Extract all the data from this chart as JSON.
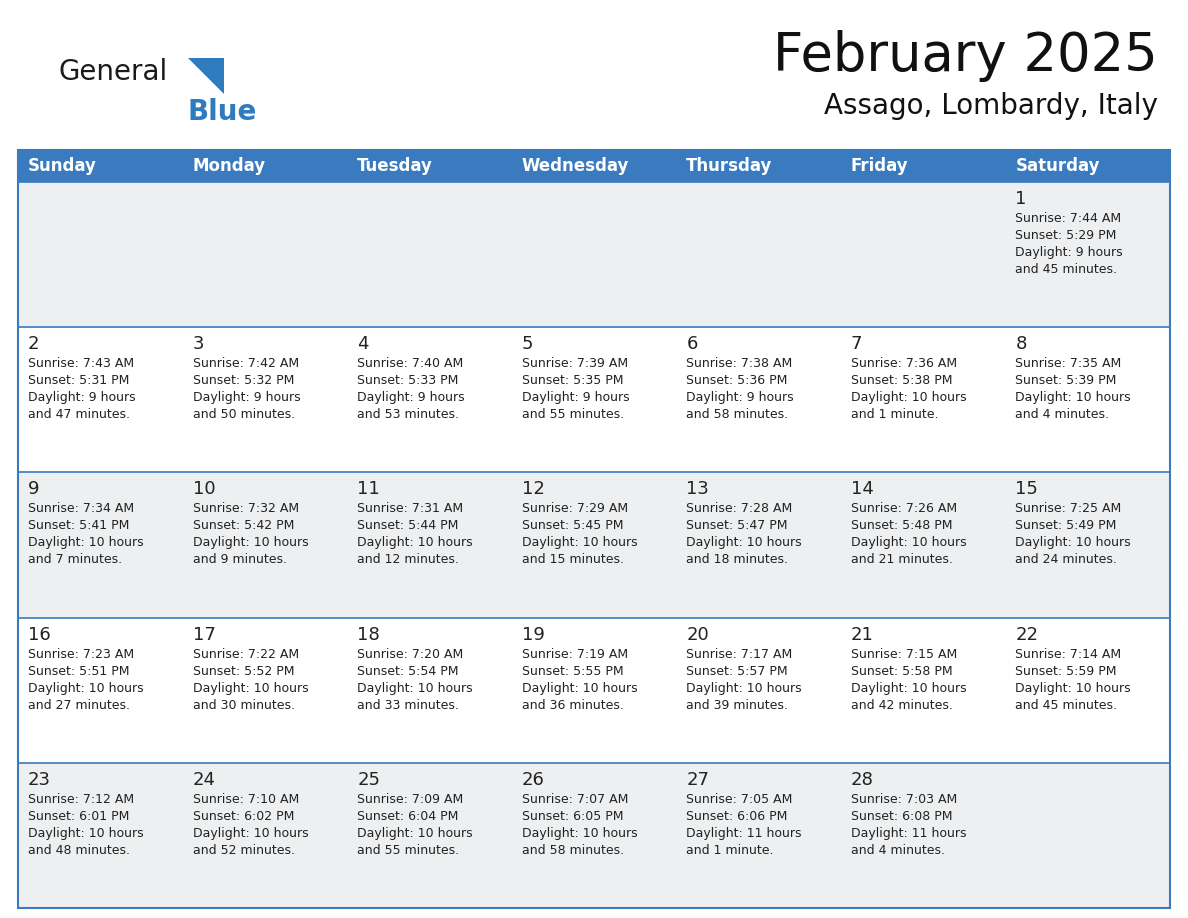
{
  "title": "February 2025",
  "subtitle": "Assago, Lombardy, Italy",
  "header_color": "#3a7abf",
  "header_text_color": "#ffffff",
  "cell_bg_light": "#f0f4f8",
  "cell_bg_white": "#ffffff",
  "row_bg_gray": "#eeeff0",
  "border_color": "#3a7abf",
  "text_color": "#222222",
  "day_number_color": "#222222",
  "days_of_week": [
    "Sunday",
    "Monday",
    "Tuesday",
    "Wednesday",
    "Thursday",
    "Friday",
    "Saturday"
  ],
  "weeks": [
    [
      {
        "day": null,
        "info": null
      },
      {
        "day": null,
        "info": null
      },
      {
        "day": null,
        "info": null
      },
      {
        "day": null,
        "info": null
      },
      {
        "day": null,
        "info": null
      },
      {
        "day": null,
        "info": null
      },
      {
        "day": 1,
        "info": "Sunrise: 7:44 AM\nSunset: 5:29 PM\nDaylight: 9 hours\nand 45 minutes."
      }
    ],
    [
      {
        "day": 2,
        "info": "Sunrise: 7:43 AM\nSunset: 5:31 PM\nDaylight: 9 hours\nand 47 minutes."
      },
      {
        "day": 3,
        "info": "Sunrise: 7:42 AM\nSunset: 5:32 PM\nDaylight: 9 hours\nand 50 minutes."
      },
      {
        "day": 4,
        "info": "Sunrise: 7:40 AM\nSunset: 5:33 PM\nDaylight: 9 hours\nand 53 minutes."
      },
      {
        "day": 5,
        "info": "Sunrise: 7:39 AM\nSunset: 5:35 PM\nDaylight: 9 hours\nand 55 minutes."
      },
      {
        "day": 6,
        "info": "Sunrise: 7:38 AM\nSunset: 5:36 PM\nDaylight: 9 hours\nand 58 minutes."
      },
      {
        "day": 7,
        "info": "Sunrise: 7:36 AM\nSunset: 5:38 PM\nDaylight: 10 hours\nand 1 minute."
      },
      {
        "day": 8,
        "info": "Sunrise: 7:35 AM\nSunset: 5:39 PM\nDaylight: 10 hours\nand 4 minutes."
      }
    ],
    [
      {
        "day": 9,
        "info": "Sunrise: 7:34 AM\nSunset: 5:41 PM\nDaylight: 10 hours\nand 7 minutes."
      },
      {
        "day": 10,
        "info": "Sunrise: 7:32 AM\nSunset: 5:42 PM\nDaylight: 10 hours\nand 9 minutes."
      },
      {
        "day": 11,
        "info": "Sunrise: 7:31 AM\nSunset: 5:44 PM\nDaylight: 10 hours\nand 12 minutes."
      },
      {
        "day": 12,
        "info": "Sunrise: 7:29 AM\nSunset: 5:45 PM\nDaylight: 10 hours\nand 15 minutes."
      },
      {
        "day": 13,
        "info": "Sunrise: 7:28 AM\nSunset: 5:47 PM\nDaylight: 10 hours\nand 18 minutes."
      },
      {
        "day": 14,
        "info": "Sunrise: 7:26 AM\nSunset: 5:48 PM\nDaylight: 10 hours\nand 21 minutes."
      },
      {
        "day": 15,
        "info": "Sunrise: 7:25 AM\nSunset: 5:49 PM\nDaylight: 10 hours\nand 24 minutes."
      }
    ],
    [
      {
        "day": 16,
        "info": "Sunrise: 7:23 AM\nSunset: 5:51 PM\nDaylight: 10 hours\nand 27 minutes."
      },
      {
        "day": 17,
        "info": "Sunrise: 7:22 AM\nSunset: 5:52 PM\nDaylight: 10 hours\nand 30 minutes."
      },
      {
        "day": 18,
        "info": "Sunrise: 7:20 AM\nSunset: 5:54 PM\nDaylight: 10 hours\nand 33 minutes."
      },
      {
        "day": 19,
        "info": "Sunrise: 7:19 AM\nSunset: 5:55 PM\nDaylight: 10 hours\nand 36 minutes."
      },
      {
        "day": 20,
        "info": "Sunrise: 7:17 AM\nSunset: 5:57 PM\nDaylight: 10 hours\nand 39 minutes."
      },
      {
        "day": 21,
        "info": "Sunrise: 7:15 AM\nSunset: 5:58 PM\nDaylight: 10 hours\nand 42 minutes."
      },
      {
        "day": 22,
        "info": "Sunrise: 7:14 AM\nSunset: 5:59 PM\nDaylight: 10 hours\nand 45 minutes."
      }
    ],
    [
      {
        "day": 23,
        "info": "Sunrise: 7:12 AM\nSunset: 6:01 PM\nDaylight: 10 hours\nand 48 minutes."
      },
      {
        "day": 24,
        "info": "Sunrise: 7:10 AM\nSunset: 6:02 PM\nDaylight: 10 hours\nand 52 minutes."
      },
      {
        "day": 25,
        "info": "Sunrise: 7:09 AM\nSunset: 6:04 PM\nDaylight: 10 hours\nand 55 minutes."
      },
      {
        "day": 26,
        "info": "Sunrise: 7:07 AM\nSunset: 6:05 PM\nDaylight: 10 hours\nand 58 minutes."
      },
      {
        "day": 27,
        "info": "Sunrise: 7:05 AM\nSunset: 6:06 PM\nDaylight: 11 hours\nand 1 minute."
      },
      {
        "day": 28,
        "info": "Sunrise: 7:03 AM\nSunset: 6:08 PM\nDaylight: 11 hours\nand 4 minutes."
      },
      {
        "day": null,
        "info": null
      }
    ]
  ],
  "logo_general_color": "#1a1a1a",
  "logo_blue_color": "#2f7bbf",
  "fig_width": 11.88,
  "fig_height": 9.18
}
